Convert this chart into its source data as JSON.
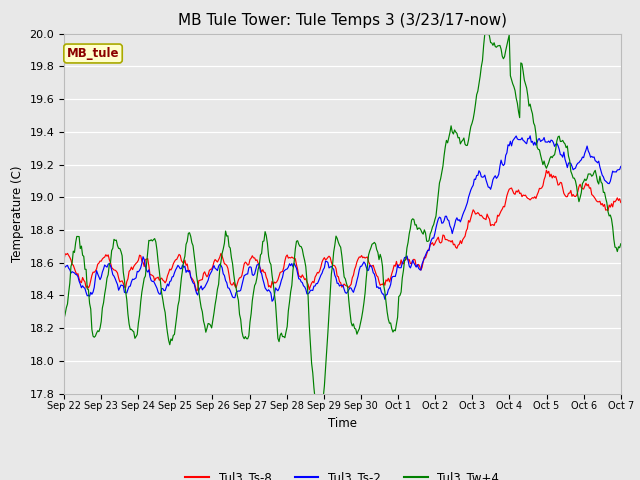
{
  "title": "MB Tule Tower: Tule Temps 3 (3/23/17-now)",
  "xlabel": "Time",
  "ylabel": "Temperature (C)",
  "ylim": [
    17.8,
    20.0
  ],
  "background_color": "#e8e8e8",
  "grid_color": "white",
  "annotation_label": "MB_tule",
  "annotation_color": "#8b0000",
  "annotation_bg": "#ffffcc",
  "legend_entries": [
    "Tul3_Ts-8",
    "Tul3_Ts-2",
    "Tul3_Tw+4"
  ],
  "line_colors": [
    "red",
    "blue",
    "green"
  ],
  "title_fontsize": 11,
  "tick_labels": [
    "Sep 22",
    "Sep 23",
    "Sep 24",
    "Sep 25",
    "Sep 26",
    "Sep 27",
    "Sep 28",
    "Sep 29",
    "Sep 30",
    "Oct 1",
    "Oct 2",
    "Oct 3",
    "Oct 4",
    "Oct 5",
    "Oct 6",
    "Oct 7"
  ]
}
